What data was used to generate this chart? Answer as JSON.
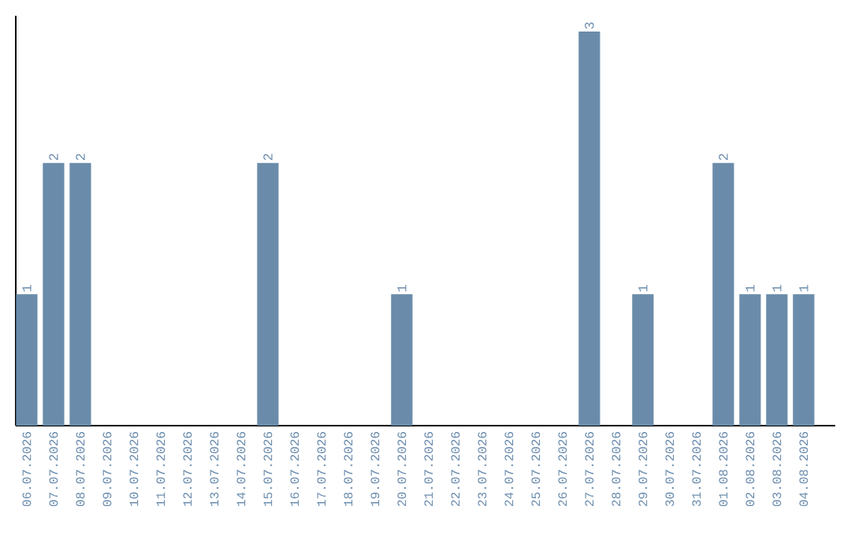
{
  "chart_data": {
    "type": "bar",
    "categories": [
      "06.07.2026",
      "07.07.2026",
      "08.07.2026",
      "09.07.2026",
      "10.07.2026",
      "11.07.2026",
      "12.07.2026",
      "13.07.2026",
      "14.07.2026",
      "15.07.2026",
      "16.07.2026",
      "17.07.2026",
      "18.07.2026",
      "19.07.2026",
      "20.07.2026",
      "21.07.2026",
      "22.07.2026",
      "23.07.2026",
      "24.07.2026",
      "25.07.2026",
      "26.07.2026",
      "27.07.2026",
      "28.07.2026",
      "29.07.2026",
      "30.07.2026",
      "31.07.2026",
      "01.08.2026",
      "02.08.2026",
      "03.08.2026",
      "04.08.2026"
    ],
    "values": [
      1,
      2,
      2,
      0,
      0,
      0,
      0,
      0,
      0,
      2,
      0,
      0,
      0,
      0,
      1,
      0,
      0,
      0,
      0,
      0,
      0,
      3,
      0,
      1,
      0,
      0,
      2,
      1,
      1,
      1
    ],
    "value_labels": [
      "1",
      "2",
      "2",
      null,
      null,
      null,
      null,
      null,
      null,
      "2",
      null,
      null,
      null,
      null,
      "1",
      null,
      null,
      null,
      null,
      null,
      null,
      "3",
      null,
      "1",
      null,
      null,
      "2",
      "1",
      "1",
      "1"
    ],
    "color": "#6a8caa",
    "ylim": [
      0,
      3.12
    ],
    "tick_labels": "x"
  }
}
